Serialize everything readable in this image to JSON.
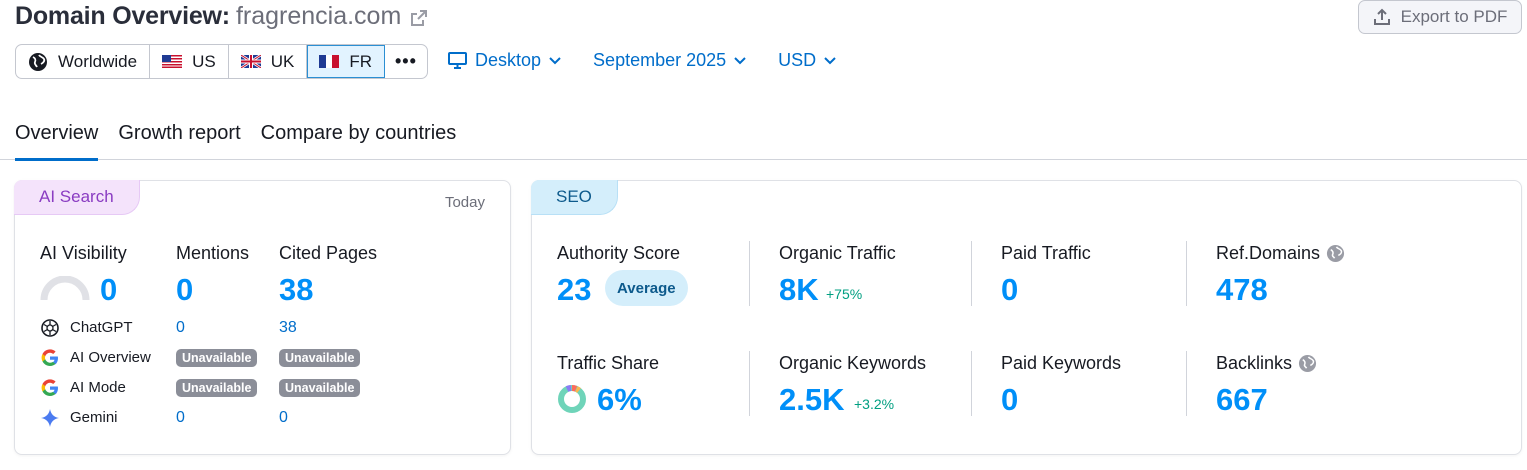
{
  "header": {
    "title": "Domain Overview:",
    "domain": "fragrencia.com",
    "export_label": "Export to PDF"
  },
  "databases": [
    {
      "label": "Worldwide",
      "icon": "globe-icon"
    },
    {
      "label": "US",
      "icon": "us-flag-icon"
    },
    {
      "label": "UK",
      "icon": "uk-flag-icon"
    },
    {
      "label": "FR",
      "icon": "fr-flag-icon",
      "selected": true
    }
  ],
  "more_label": "•••",
  "selectors": {
    "device": "Desktop",
    "date": "September 2025",
    "currency": "USD"
  },
  "tabs": [
    {
      "label": "Overview",
      "active": true
    },
    {
      "label": "Growth report"
    },
    {
      "label": "Compare by countries"
    }
  ],
  "ai_card": {
    "tag": "AI Search",
    "date_label": "Today",
    "visibility_label": "AI Visibility",
    "visibility_value": "0",
    "mentions_label": "Mentions",
    "mentions_value": "0",
    "cited_label": "Cited Pages",
    "cited_value": "38",
    "rows": [
      {
        "name": "ChatGPT",
        "icon": "chatgpt-icon",
        "mentions": "0",
        "cited": "38"
      },
      {
        "name": "AI Overview",
        "icon": "google-icon",
        "mentions": "Unavailable",
        "cited": "Unavailable"
      },
      {
        "name": "AI Mode",
        "icon": "google-icon",
        "mentions": "Unavailable",
        "cited": "Unavailable"
      },
      {
        "name": "Gemini",
        "icon": "gemini-icon",
        "mentions": "0",
        "cited": "0"
      }
    ]
  },
  "seo_card": {
    "tag": "SEO",
    "authority_label": "Authority Score",
    "authority_value": "23",
    "authority_badge": "Average",
    "organic_traffic_label": "Organic Traffic",
    "organic_traffic_value": "8K",
    "organic_traffic_delta": "+75%",
    "paid_traffic_label": "Paid Traffic",
    "paid_traffic_value": "0",
    "ref_domains_label": "Ref.Domains",
    "ref_domains_value": "478",
    "traffic_share_label": "Traffic Share",
    "traffic_share_value": "6%",
    "organic_keywords_label": "Organic Keywords",
    "organic_keywords_value": "2.5K",
    "organic_keywords_delta": "+3.2%",
    "paid_keywords_label": "Paid Keywords",
    "paid_keywords_value": "0",
    "backlinks_label": "Backlinks",
    "backlinks_value": "667"
  },
  "colors": {
    "accent": "#008ff8",
    "link": "#006dca",
    "ai_tag_bg": "#f4e3fb",
    "seo_tag_bg": "#d4eefb",
    "positive": "#009f81"
  }
}
